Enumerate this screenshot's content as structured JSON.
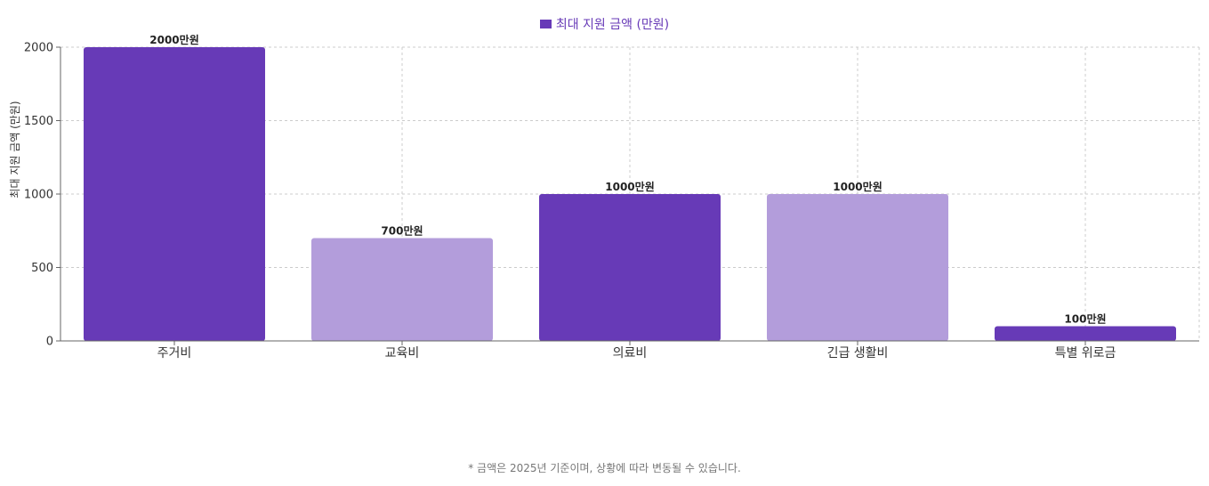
{
  "legend": {
    "label": "최대 지원 금액 (만원)",
    "color": "#673ab7"
  },
  "footnote": "* 금액은 2025년 기준이며, 상황에 따라 변동될 수 있습니다.",
  "chart_data": {
    "type": "bar",
    "categories": [
      "주거비",
      "교육비",
      "의료비",
      "긴급 생활비",
      "특별 위로금"
    ],
    "series": [
      {
        "name": "최대 지원 금액 (만원)",
        "values": [
          2000,
          700,
          1000,
          1000,
          100
        ]
      }
    ],
    "data_labels": [
      "2000만원",
      "700만원",
      "1000만원",
      "1000만원",
      "100만원"
    ],
    "bar_colors": [
      "#673ab7",
      "#b39ddb",
      "#673ab7",
      "#b39ddb",
      "#673ab7"
    ],
    "xlabel": "",
    "ylabel": "최대 지원 금액 (만원)",
    "ylim": [
      0,
      2000
    ],
    "yticks": [
      0,
      500,
      1000,
      1500,
      2000
    ],
    "grid": true,
    "legend_position": "top-center"
  }
}
